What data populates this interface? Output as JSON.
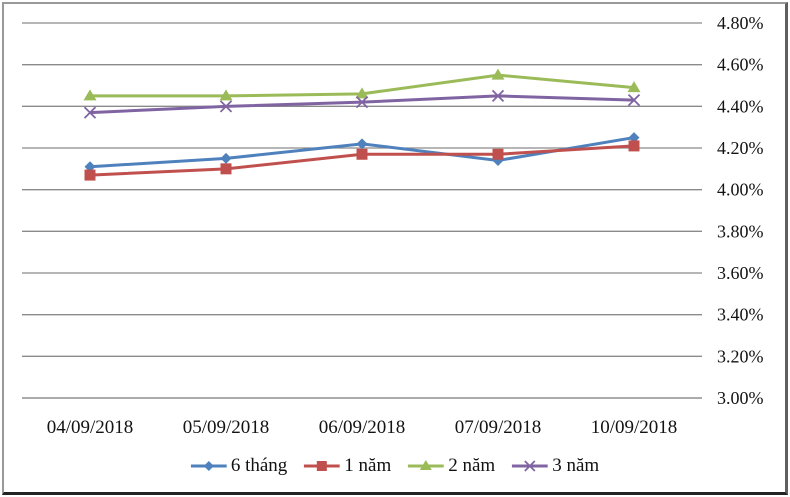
{
  "chart_data": {
    "type": "line",
    "title": "",
    "x_categories": [
      "04/09/2018",
      "05/09/2018",
      "06/09/2018",
      "07/09/2018",
      "10/09/2018"
    ],
    "series": [
      {
        "name": "6 tháng",
        "marker": "diamond",
        "color": "#4F81BD",
        "values": [
          4.11,
          4.15,
          4.22,
          4.14,
          4.25
        ]
      },
      {
        "name": "1 năm",
        "marker": "square",
        "color": "#C0504D",
        "values": [
          4.07,
          4.1,
          4.17,
          4.17,
          4.21
        ]
      },
      {
        "name": "2 năm",
        "marker": "triangle",
        "color": "#9BBB59",
        "values": [
          4.45,
          4.45,
          4.46,
          4.55,
          4.49
        ]
      },
      {
        "name": "3 năm",
        "marker": "x",
        "color": "#8064A2",
        "values": [
          4.37,
          4.4,
          4.42,
          4.45,
          4.43
        ]
      }
    ],
    "y_axis": {
      "side": "right",
      "min": 3.0,
      "max": 4.8,
      "step": 0.2,
      "tick_labels_top_to_bottom": [
        "4.80%",
        "4.60%",
        "4.40%",
        "4.20%",
        "4.00%",
        "3.80%",
        "3.60%",
        "3.40%",
        "3.20%",
        "3.00%"
      ]
    },
    "grid": "horizontal",
    "legend": {
      "position": "bottom",
      "entries": [
        "6 tháng",
        "1 năm",
        "2 năm",
        "3 năm"
      ]
    }
  },
  "style": {
    "gridline_color": "#8a8a8a",
    "axis_line_color": "#8a8a8a",
    "text_color": "#131313",
    "background": "#ffffff"
  }
}
